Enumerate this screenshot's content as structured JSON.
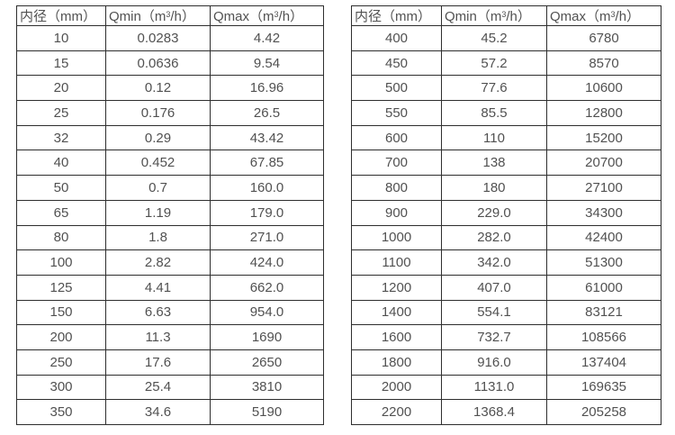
{
  "page": {
    "background": "#ffffff",
    "border_color": "#2e2e2e",
    "text_color": "#515151"
  },
  "tables": [
    {
      "name": "small-diameter-flow-table",
      "headers": {
        "diameter": "内径（mm）",
        "qmin_pre": "Qmin（m",
        "qmin_sup": "3",
        "qmin_post": "/h）",
        "qmax_pre": "Qmax（m",
        "qmax_sup": "3",
        "qmax_post": "/h）"
      },
      "rows": [
        [
          "10",
          "0.0283",
          "4.42"
        ],
        [
          "15",
          "0.0636",
          "9.54"
        ],
        [
          "20",
          "0.12",
          "16.96"
        ],
        [
          "25",
          "0.176",
          "26.5"
        ],
        [
          "32",
          "0.29",
          "43.42"
        ],
        [
          "40",
          "0.452",
          "67.85"
        ],
        [
          "50",
          "0.7",
          "160.0"
        ],
        [
          "65",
          "1.19",
          "179.0"
        ],
        [
          "80",
          "1.8",
          "271.0"
        ],
        [
          "100",
          "2.82",
          "424.0"
        ],
        [
          "125",
          "4.41",
          "662.0"
        ],
        [
          "150",
          "6.63",
          "954.0"
        ],
        [
          "200",
          "11.3",
          "1690"
        ],
        [
          "250",
          "17.6",
          "2650"
        ],
        [
          "300",
          "25.4",
          "3810"
        ],
        [
          "350",
          "34.6",
          "5190"
        ]
      ]
    },
    {
      "name": "large-diameter-flow-table",
      "headers": {
        "diameter": "内径（mm）",
        "qmin_pre": "Qmin（m",
        "qmin_sup": "3",
        "qmin_post": "/h）",
        "qmax_pre": "Qmax（m",
        "qmax_sup": "3",
        "qmax_post": "/h）"
      },
      "rows": [
        [
          "400",
          "45.2",
          "6780"
        ],
        [
          "450",
          "57.2",
          "8570"
        ],
        [
          "500",
          "77.6",
          "10600"
        ],
        [
          "550",
          "85.5",
          "12800"
        ],
        [
          "600",
          "110",
          "15200"
        ],
        [
          "700",
          "138",
          "20700"
        ],
        [
          "800",
          "180",
          "27100"
        ],
        [
          "900",
          "229.0",
          "34300"
        ],
        [
          "1000",
          "282.0",
          "42400"
        ],
        [
          "1100",
          "342.0",
          "51300"
        ],
        [
          "1200",
          "407.0",
          "61000"
        ],
        [
          "1400",
          "554.1",
          "83121"
        ],
        [
          "1600",
          "732.7",
          "108566"
        ],
        [
          "1800",
          "916.0",
          "137404"
        ],
        [
          "2000",
          "1131.0",
          "169635"
        ],
        [
          "2200",
          "1368.4",
          "205258"
        ]
      ]
    }
  ]
}
